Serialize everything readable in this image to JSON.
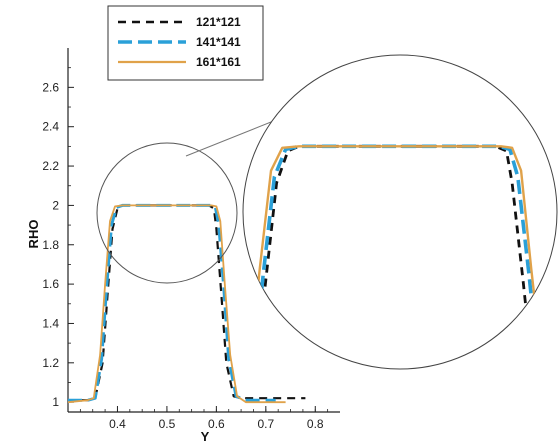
{
  "chart_data": {
    "type": "line",
    "xlabel": "Y",
    "ylabel": "RHO",
    "xlim": [
      0.3,
      0.85
    ],
    "ylim": [
      0.95,
      2.8
    ],
    "xticks": [
      "0.4",
      "0.5",
      "0.6",
      "0.7",
      "0.8"
    ],
    "yticks": [
      "1",
      "1.2",
      "1.4",
      "1.6",
      "1.8",
      "2",
      "2.2",
      "2.4",
      "2.6"
    ],
    "legend_position": "top-left",
    "zoom_inset": true,
    "series": [
      {
        "name": "121*121",
        "color": "#111111",
        "dash": "dashed",
        "x": [
          0.3,
          0.34,
          0.355,
          0.37,
          0.38,
          0.39,
          0.4,
          0.41,
          0.5,
          0.585,
          0.595,
          0.6,
          0.61,
          0.62,
          0.635,
          0.65,
          0.7,
          0.78
        ],
        "y": [
          1.01,
          1.01,
          1.02,
          1.2,
          1.55,
          1.88,
          1.985,
          2.0,
          2.0,
          2.0,
          1.985,
          1.88,
          1.55,
          1.2,
          1.03,
          1.02,
          1.02,
          1.02
        ]
      },
      {
        "name": "141*141",
        "color": "#2aa0d8",
        "dash": "long-dashed",
        "x": [
          0.3,
          0.34,
          0.355,
          0.368,
          0.378,
          0.388,
          0.398,
          0.41,
          0.5,
          0.588,
          0.598,
          0.605,
          0.615,
          0.625,
          0.64,
          0.66,
          0.7,
          0.72
        ],
        "y": [
          1.01,
          1.01,
          1.02,
          1.22,
          1.58,
          1.9,
          1.99,
          2.0,
          2.0,
          2.0,
          1.99,
          1.9,
          1.58,
          1.22,
          1.03,
          1.01,
          1.01,
          1.01
        ]
      },
      {
        "name": "161*161",
        "color": "#e0a24a",
        "dash": "solid",
        "x": [
          0.3,
          0.34,
          0.352,
          0.365,
          0.375,
          0.385,
          0.395,
          0.41,
          0.5,
          0.59,
          0.6,
          0.608,
          0.617,
          0.628,
          0.642,
          0.66,
          0.7,
          0.74
        ],
        "y": [
          1.0,
          1.01,
          1.02,
          1.24,
          1.6,
          1.92,
          1.995,
          2.0,
          2.0,
          2.0,
          1.995,
          1.92,
          1.6,
          1.24,
          1.03,
          1.0,
          1.0,
          1.0
        ]
      }
    ]
  }
}
